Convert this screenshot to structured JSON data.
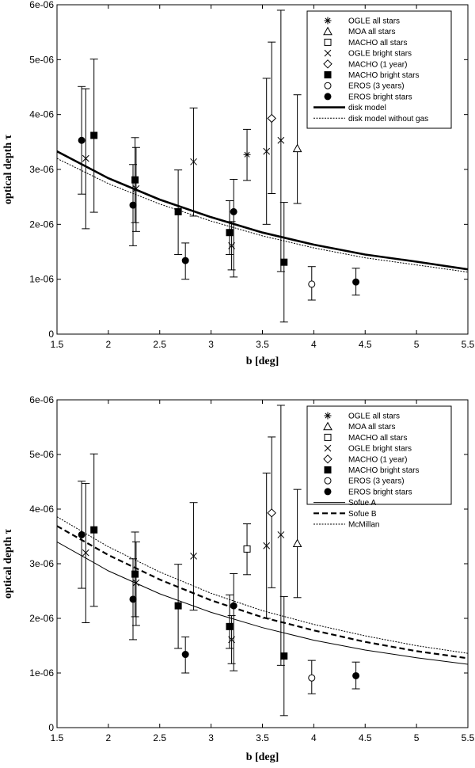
{
  "chart_data": [
    {
      "type": "scatter",
      "xlabel": "b [deg]",
      "ylabel": "optical depth τ",
      "xlim": [
        1.5,
        5.5
      ],
      "ylim": [
        0,
        6e-06
      ],
      "xticks": [
        1.5,
        2,
        2.5,
        3,
        3.5,
        4,
        4.5,
        5,
        5.5
      ],
      "xtick_labels": [
        "1.5",
        "2",
        "2.5",
        "3",
        "3.5",
        "4",
        "4.5",
        "5",
        "5.5"
      ],
      "yticks": [
        0,
        1e-06,
        2e-06,
        3e-06,
        4e-06,
        5e-06,
        6e-06
      ],
      "ytick_labels": [
        "0",
        "1e-06",
        "2e-06",
        "3e-06",
        "4e-06",
        "5e-06",
        "6e-06"
      ],
      "legend_position": "top-right",
      "point_series": [
        {
          "name": "OGLE all stars",
          "marker": "asterisk",
          "points": [
            {
              "x": 3.35,
              "y": 3.27e-06,
              "lo": 2.8e-06,
              "hi": 3.73e-06
            }
          ]
        },
        {
          "name": "MOA all stars",
          "marker": "triangle",
          "points": [
            {
              "x": 3.84,
              "y": 3.38e-06,
              "lo": 2.38e-06,
              "hi": 4.36e-06
            }
          ]
        },
        {
          "name": "MACHO all stars",
          "marker": "square-open",
          "points": []
        },
        {
          "name": "OGLE bright stars",
          "marker": "cross",
          "points": [
            {
              "x": 1.78,
              "y": 3.2e-06,
              "lo": 1.92e-06,
              "hi": 4.47e-06
            },
            {
              "x": 2.27,
              "y": 2.65e-06,
              "lo": 1.87e-06,
              "hi": 3.4e-06
            },
            {
              "x": 2.83,
              "y": 3.14e-06,
              "lo": 2.15e-06,
              "hi": 4.12e-06
            },
            {
              "x": 3.2,
              "y": 1.61e-06,
              "lo": 1.17e-06,
              "hi": 2.05e-06
            },
            {
              "x": 3.54,
              "y": 3.33e-06,
              "lo": 2e-06,
              "hi": 4.66e-06
            },
            {
              "x": 3.68,
              "y": 3.53e-06,
              "lo": 1.14e-06,
              "hi": 5.9e-06
            }
          ]
        },
        {
          "name": "MACHO (1 year)",
          "marker": "diamond",
          "points": [
            {
              "x": 3.59,
              "y": 3.93e-06,
              "lo": 2.56e-06,
              "hi": 5.32e-06
            }
          ]
        },
        {
          "name": "MACHO bright stars",
          "marker": "square-filled",
          "points": [
            {
              "x": 1.86,
              "y": 3.62e-06,
              "lo": 2.22e-06,
              "hi": 5.01e-06
            },
            {
              "x": 2.26,
              "y": 2.81e-06,
              "lo": 2.03e-06,
              "hi": 3.58e-06
            },
            {
              "x": 2.68,
              "y": 2.23e-06,
              "lo": 1.45e-06,
              "hi": 2.99e-06
            },
            {
              "x": 3.18,
              "y": 1.85e-06,
              "lo": 1.45e-06,
              "hi": 2.43e-06
            },
            {
              "x": 3.71,
              "y": 1.31e-06,
              "lo": 2.2e-07,
              "hi": 2.4e-06
            }
          ]
        },
        {
          "name": "EROS (3 years)",
          "marker": "circle-open",
          "points": [
            {
              "x": 3.98,
              "y": 9.1e-07,
              "lo": 6.2e-07,
              "hi": 1.23e-06
            }
          ]
        },
        {
          "name": "EROS bright stars",
          "marker": "circle-filled",
          "points": [
            {
              "x": 1.74,
              "y": 3.53e-06,
              "lo": 2.55e-06,
              "hi": 4.51e-06
            },
            {
              "x": 2.24,
              "y": 2.35e-06,
              "lo": 1.61e-06,
              "hi": 3.09e-06
            },
            {
              "x": 2.75,
              "y": 1.34e-06,
              "lo": 1e-06,
              "hi": 1.66e-06
            },
            {
              "x": 3.22,
              "y": 2.23e-06,
              "lo": 1.04e-06,
              "hi": 2.82e-06
            },
            {
              "x": 4.41,
              "y": 9.5e-07,
              "lo": 7.1e-07,
              "hi": 1.2e-06
            }
          ]
        }
      ],
      "line_series": [
        {
          "name": "disk model",
          "style": "thick",
          "x": [
            1.5,
            2.0,
            2.5,
            3.0,
            3.5,
            4.0,
            4.5,
            5.0,
            5.5
          ],
          "y": [
            3.33e-06,
            2.84e-06,
            2.45e-06,
            2.13e-06,
            1.85e-06,
            1.63e-06,
            1.45e-06,
            1.32e-06,
            1.18e-06
          ]
        },
        {
          "name": "disk model without gas",
          "style": "dotted",
          "x": [
            1.5,
            2.0,
            2.5,
            3.0,
            3.5,
            4.0,
            4.5,
            5.0,
            5.5
          ],
          "y": [
            3.2e-06,
            2.74e-06,
            2.37e-06,
            2.06e-06,
            1.79e-06,
            1.57e-06,
            1.39e-06,
            1.26e-06,
            1.13e-06
          ]
        }
      ]
    },
    {
      "type": "scatter",
      "xlabel": "b [deg]",
      "ylabel": "optical depth τ",
      "xlim": [
        1.5,
        5.5
      ],
      "ylim": [
        0,
        6e-06
      ],
      "xticks": [
        1.5,
        2,
        2.5,
        3,
        3.5,
        4,
        4.5,
        5,
        5.5
      ],
      "xtick_labels": [
        "1.5",
        "2",
        "2.5",
        "3",
        "3.5",
        "4",
        "4.5",
        "5",
        "5.5"
      ],
      "yticks": [
        0,
        1e-06,
        2e-06,
        3e-06,
        4e-06,
        5e-06,
        6e-06
      ],
      "ytick_labels": [
        "0",
        "1e-06",
        "2e-06",
        "3e-06",
        "4e-06",
        "5e-06",
        "6e-06"
      ],
      "legend_position": "top-right",
      "point_series": [
        {
          "name": "OGLE all stars",
          "marker": "asterisk",
          "points": []
        },
        {
          "name": "MOA all stars",
          "marker": "triangle",
          "points": [
            {
              "x": 3.84,
              "y": 3.37e-06,
              "lo": 2.38e-06,
              "hi": 4.36e-06
            }
          ]
        },
        {
          "name": "MACHO all stars",
          "marker": "square-open",
          "points": [
            {
              "x": 3.35,
              "y": 3.27e-06,
              "lo": 2.8e-06,
              "hi": 3.73e-06
            }
          ]
        },
        {
          "name": "OGLE bright stars",
          "marker": "cross",
          "points": [
            {
              "x": 1.78,
              "y": 3.2e-06,
              "lo": 1.92e-06,
              "hi": 4.47e-06
            },
            {
              "x": 2.27,
              "y": 2.65e-06,
              "lo": 1.87e-06,
              "hi": 3.4e-06
            },
            {
              "x": 2.83,
              "y": 3.14e-06,
              "lo": 2.15e-06,
              "hi": 4.12e-06
            },
            {
              "x": 3.2,
              "y": 1.61e-06,
              "lo": 1.17e-06,
              "hi": 2.05e-06
            },
            {
              "x": 3.54,
              "y": 3.33e-06,
              "lo": 2e-06,
              "hi": 4.66e-06
            },
            {
              "x": 3.68,
              "y": 3.53e-06,
              "lo": 1.14e-06,
              "hi": 5.9e-06
            }
          ]
        },
        {
          "name": "MACHO (1 year)",
          "marker": "diamond",
          "points": [
            {
              "x": 3.59,
              "y": 3.93e-06,
              "lo": 2.56e-06,
              "hi": 5.32e-06
            }
          ]
        },
        {
          "name": "MACHO bright stars",
          "marker": "square-filled",
          "points": [
            {
              "x": 1.86,
              "y": 3.62e-06,
              "lo": 2.22e-06,
              "hi": 5.01e-06
            },
            {
              "x": 2.26,
              "y": 2.81e-06,
              "lo": 2.03e-06,
              "hi": 3.58e-06
            },
            {
              "x": 2.68,
              "y": 2.23e-06,
              "lo": 1.45e-06,
              "hi": 2.99e-06
            },
            {
              "x": 3.18,
              "y": 1.85e-06,
              "lo": 1.45e-06,
              "hi": 2.43e-06
            },
            {
              "x": 3.71,
              "y": 1.31e-06,
              "lo": 2.2e-07,
              "hi": 2.4e-06
            }
          ]
        },
        {
          "name": "EROS (3 years)",
          "marker": "circle-open",
          "points": [
            {
              "x": 3.98,
              "y": 9.1e-07,
              "lo": 6.2e-07,
              "hi": 1.23e-06
            }
          ]
        },
        {
          "name": "EROS bright stars",
          "marker": "circle-filled",
          "points": [
            {
              "x": 1.74,
              "y": 3.53e-06,
              "lo": 2.55e-06,
              "hi": 4.51e-06
            },
            {
              "x": 2.24,
              "y": 2.35e-06,
              "lo": 1.61e-06,
              "hi": 3.09e-06
            },
            {
              "x": 2.75,
              "y": 1.34e-06,
              "lo": 1e-06,
              "hi": 1.66e-06
            },
            {
              "x": 3.22,
              "y": 2.23e-06,
              "lo": 1.04e-06,
              "hi": 2.82e-06
            },
            {
              "x": 4.41,
              "y": 9.5e-07,
              "lo": 7.1e-07,
              "hi": 1.2e-06
            }
          ]
        }
      ],
      "line_series": [
        {
          "name": "Sofue A",
          "style": "thin",
          "x": [
            1.5,
            2.0,
            2.5,
            3.0,
            3.5,
            4.0,
            4.5,
            5.0,
            5.5
          ],
          "y": [
            3.4e-06,
            2.87e-06,
            2.45e-06,
            2.11e-06,
            1.83e-06,
            1.6e-06,
            1.42e-06,
            1.28e-06,
            1.16e-06
          ]
        },
        {
          "name": "Sofue B",
          "style": "dashed",
          "x": [
            1.5,
            2.0,
            2.5,
            3.0,
            3.5,
            4.0,
            4.5,
            5.0,
            5.5
          ],
          "y": [
            3.69e-06,
            3.16e-06,
            2.71e-06,
            2.33e-06,
            2.02e-06,
            1.78e-06,
            1.57e-06,
            1.4e-06,
            1.27e-06
          ]
        },
        {
          "name": "McMillan",
          "style": "dotted",
          "x": [
            1.5,
            2.0,
            2.5,
            3.0,
            3.5,
            4.0,
            4.5,
            5.0,
            5.5
          ],
          "y": [
            3.86e-06,
            3.31e-06,
            2.85e-06,
            2.46e-06,
            2.14e-06,
            1.89e-06,
            1.68e-06,
            1.5e-06,
            1.36e-06
          ]
        }
      ]
    }
  ]
}
